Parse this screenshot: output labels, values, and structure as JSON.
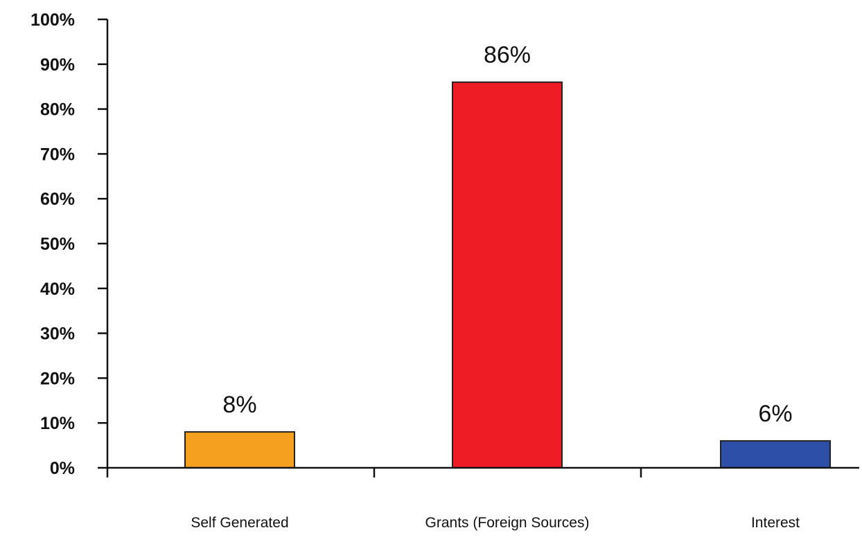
{
  "chart_data": {
    "type": "bar",
    "categories": [
      "Self Generated",
      "Grants (Foreign Sources)",
      "Interest"
    ],
    "values": [
      8,
      86,
      6
    ],
    "data_labels": [
      "8%",
      "86%",
      "6%"
    ],
    "colors": [
      "#F5A01E",
      "#EE1C25",
      "#2E4FA8"
    ],
    "bar_outline": "#222222",
    "ylim": [
      0,
      100
    ],
    "yticks": [
      0,
      10,
      20,
      30,
      40,
      50,
      60,
      70,
      80,
      90,
      100
    ],
    "ytick_labels": [
      "0%",
      "10%",
      "20%",
      "30%",
      "40%",
      "50%",
      "60%",
      "70%",
      "80%",
      "90%",
      "100%"
    ],
    "grid": false,
    "legend": "none"
  }
}
